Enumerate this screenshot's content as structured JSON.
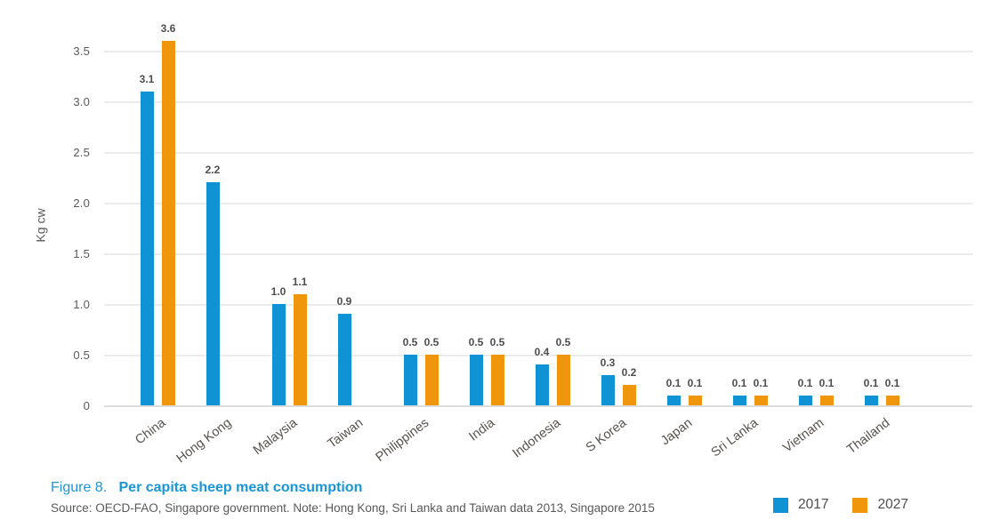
{
  "figure": {
    "caption_prefix": "Figure 8.",
    "caption_title": "Per capita sheep meat consumption",
    "source": "Source: OECD-FAO, Singapore government. Note: Hong Kong, Sri Lanka and Taiwan data 2013, Singapore 2015"
  },
  "legend": [
    {
      "label": "2017",
      "color": "#0f93d5"
    },
    {
      "label": "2027",
      "color": "#f0960c"
    }
  ],
  "colors": {
    "series_2017": "#0f93d5",
    "series_2027": "#f0960c",
    "caption_blue": "#1b96d4",
    "gridline": "#ebebeb",
    "baseline": "#dcdcdc",
    "text_gray": "#595959",
    "value_label": "#4d4d4d"
  },
  "chart_data": {
    "type": "bar",
    "title": "Figure 8. Per capita sheep meat consumption",
    "xlabel": "",
    "ylabel": "Kg cw",
    "ylim": [
      0,
      3.5
    ],
    "grid": true,
    "legend_position": "bottom-right",
    "categories": [
      "China",
      "Hong Kong",
      "Malaysia",
      "Taiwan",
      "Philippines",
      "India",
      "Indonesia",
      "S Korea",
      "Japan",
      "Sri Lanka",
      "Vietnam",
      "Thailand"
    ],
    "series": [
      {
        "name": "2017",
        "color": "#0f93d5",
        "values": [
          3.1,
          2.2,
          1.0,
          0.9,
          0.5,
          0.5,
          0.4,
          0.3,
          0.1,
          0.1,
          0.1,
          0.1
        ]
      },
      {
        "name": "2027",
        "color": "#f0960c",
        "values": [
          3.6,
          null,
          1.1,
          null,
          0.5,
          0.5,
          0.5,
          0.2,
          0.1,
          0.1,
          0.1,
          0.1
        ]
      }
    ],
    "ytick_values": [
      0,
      0.5,
      1.0,
      1.5,
      2.0,
      2.5,
      3.0,
      3.5
    ],
    "ytick_labels": [
      "0",
      "0.5",
      "1.0",
      "1.5",
      "2.0",
      "2.5",
      "3.0",
      "3.5"
    ]
  }
}
